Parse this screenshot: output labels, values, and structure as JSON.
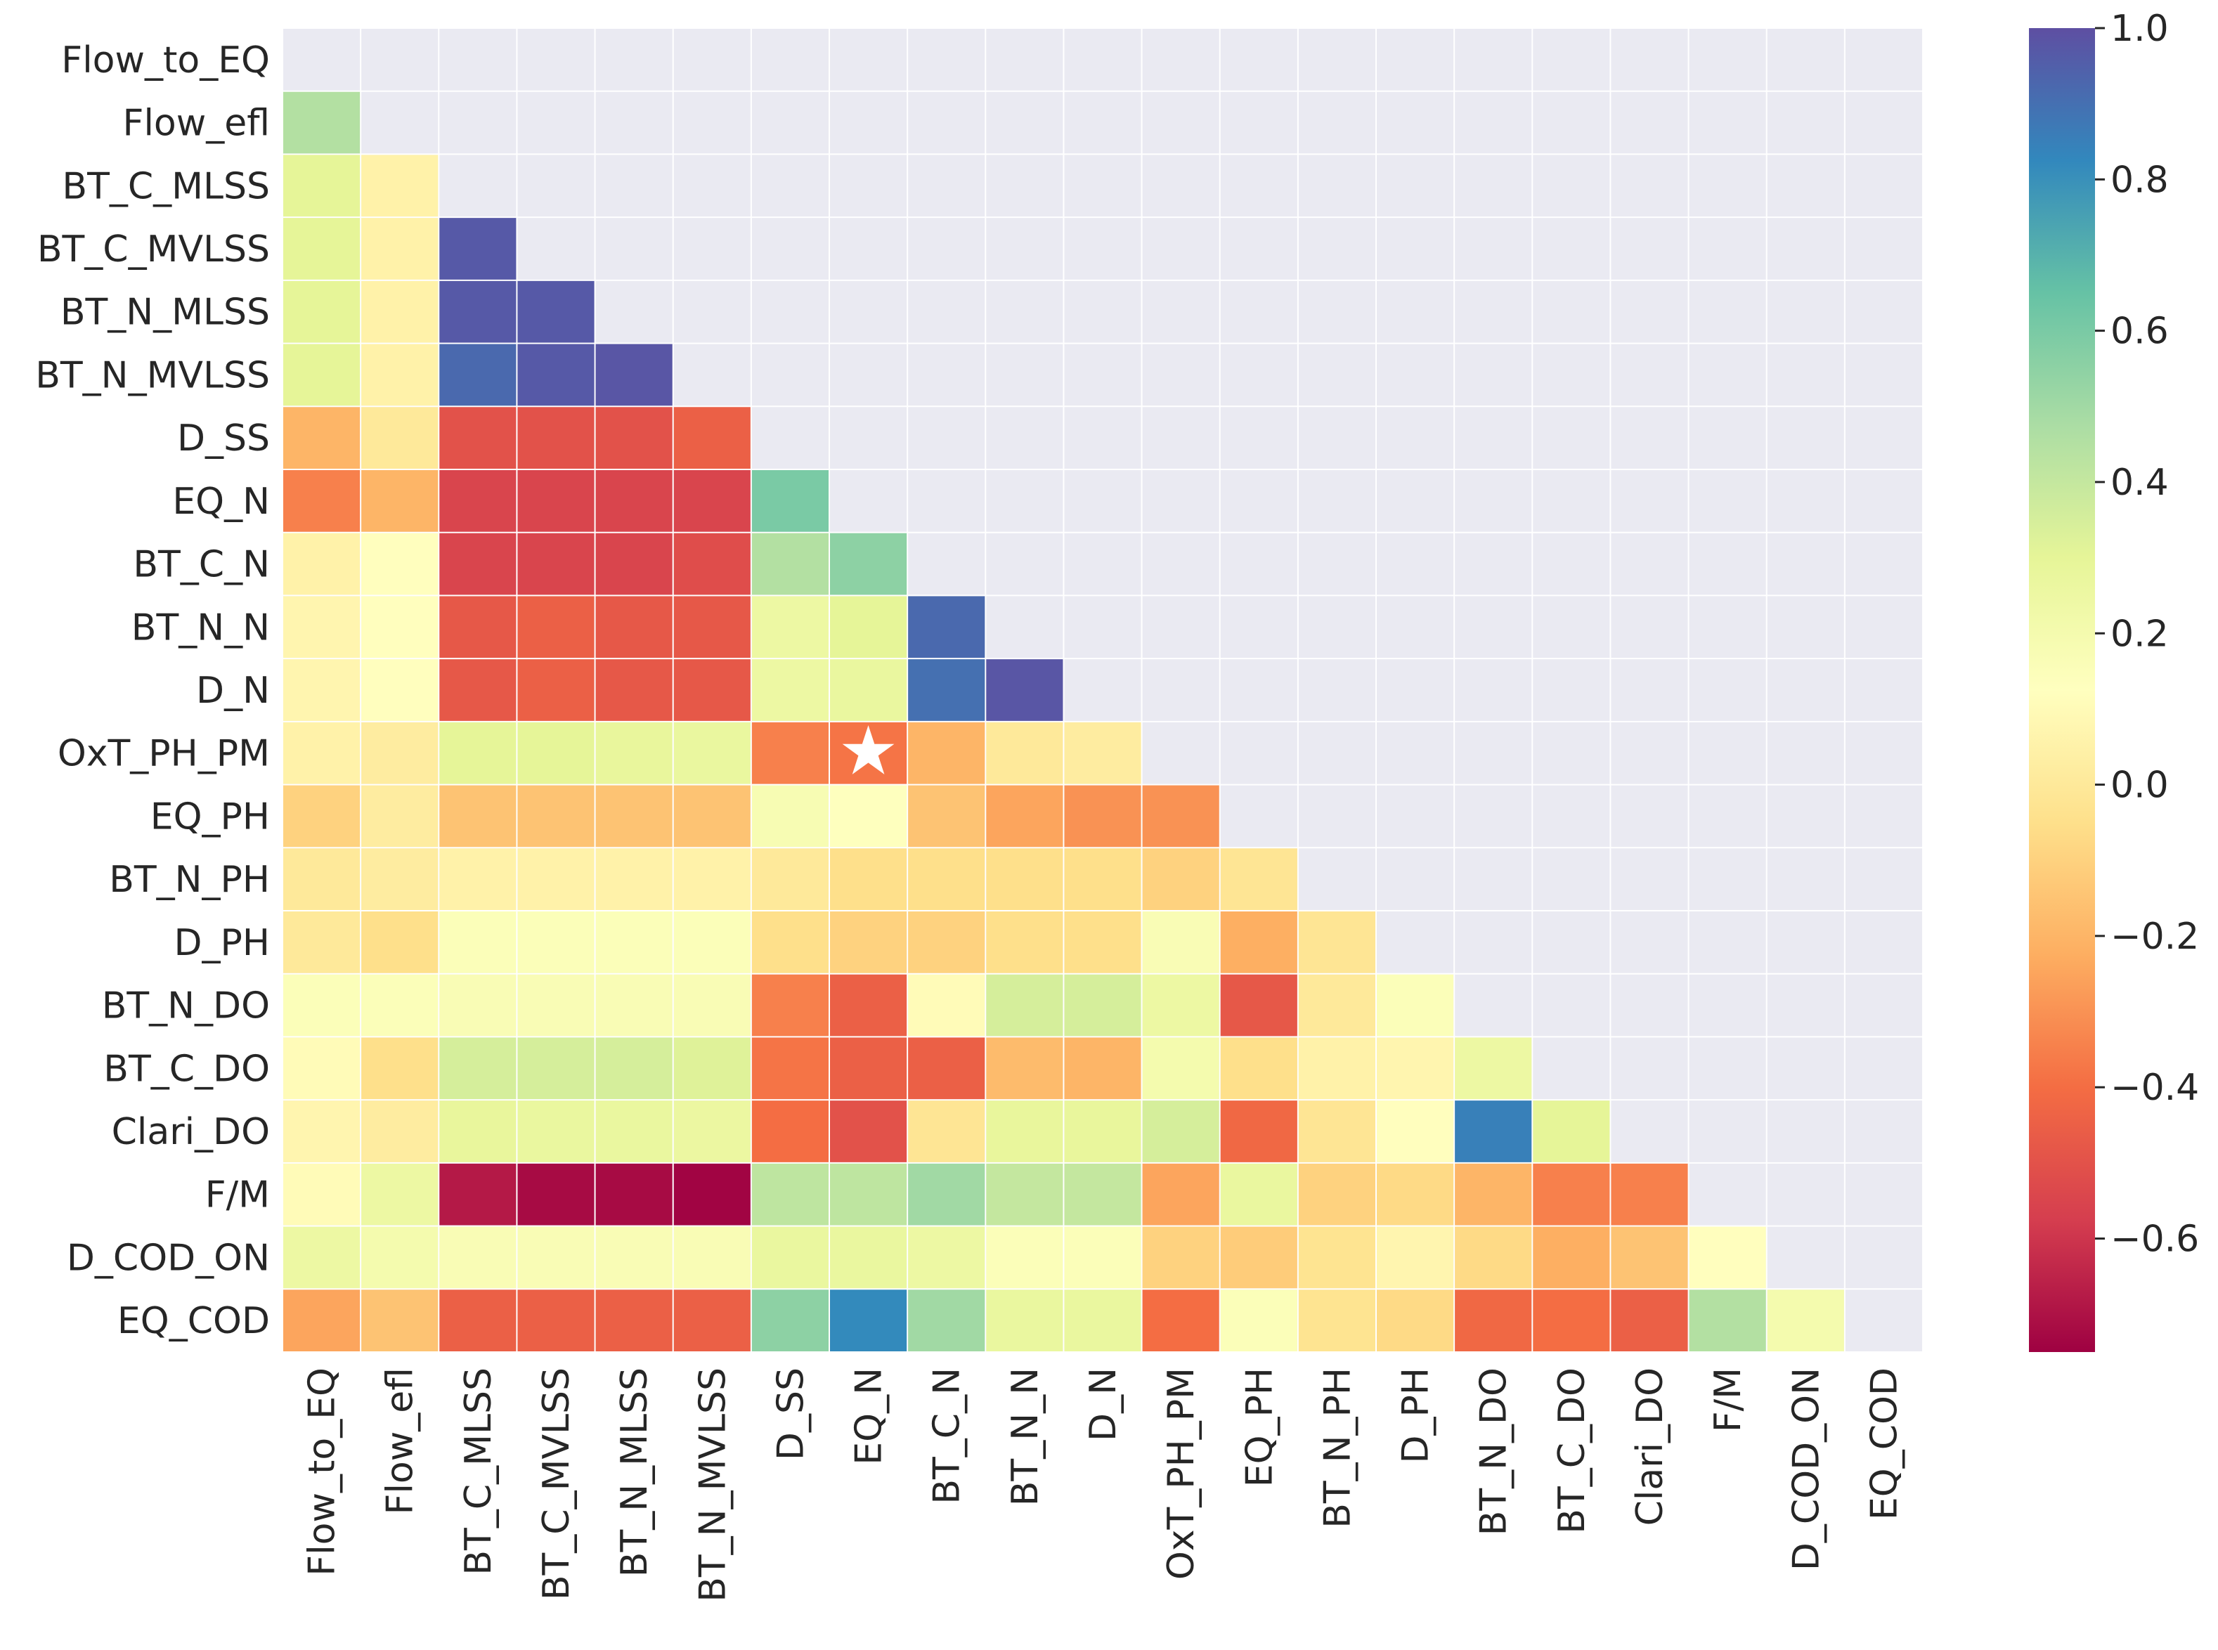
{
  "chart_data": {
    "type": "heatmap",
    "title": "",
    "xlabel": "",
    "ylabel": "",
    "mask": "upper-triangle-including-diagonal",
    "colormap": "Spectral",
    "vmin": -0.75,
    "vmax": 1.0,
    "colorbar_ticks": [
      "1.0",
      "0.8",
      "0.6",
      "0.4",
      "0.2",
      "0.0",
      "−0.2",
      "−0.4",
      "−0.6"
    ],
    "colorbar_tick_values": [
      1.0,
      0.8,
      0.6,
      0.4,
      0.2,
      0.0,
      -0.2,
      -0.4,
      -0.6
    ],
    "variables": [
      "Flow_to_EQ",
      "Flow_efl",
      "BT_C_MLSS",
      "BT_C_MVLSS",
      "BT_N_MLSS",
      "BT_N_MVLSS",
      "D_SS",
      "EQ_N",
      "BT_C_N",
      "BT_N_N",
      "D_N",
      "OxT_PH_PM",
      "EQ_PH",
      "BT_N_PH",
      "D_PH",
      "BT_N_DO",
      "BT_C_DO",
      "Clari_DO",
      "F/M",
      "D_COD_ON",
      "EQ_COD"
    ],
    "values": [
      [],
      [
        0.45
      ],
      [
        0.3,
        0.05
      ],
      [
        0.3,
        0.05,
        0.97
      ],
      [
        0.3,
        0.05,
        0.97,
        0.97
      ],
      [
        0.3,
        0.05,
        0.92,
        0.97,
        0.98
      ],
      [
        -0.2,
        0.0,
        -0.5,
        -0.5,
        -0.5,
        -0.45
      ],
      [
        -0.35,
        -0.2,
        -0.55,
        -0.55,
        -0.55,
        -0.55,
        0.6
      ],
      [
        0.05,
        0.12,
        -0.55,
        -0.55,
        -0.55,
        -0.52,
        0.45,
        0.55
      ],
      [
        0.07,
        0.12,
        -0.48,
        -0.45,
        -0.48,
        -0.48,
        0.25,
        0.3,
        0.92
      ],
      [
        0.07,
        0.12,
        -0.48,
        -0.45,
        -0.48,
        -0.48,
        0.25,
        0.27,
        0.9,
        0.98
      ],
      [
        0.05,
        0.02,
        0.3,
        0.3,
        0.28,
        0.27,
        -0.35,
        -0.38,
        -0.2,
        0.0,
        0.02
      ],
      [
        -0.1,
        0.02,
        -0.15,
        -0.15,
        -0.15,
        -0.15,
        0.18,
        0.13,
        -0.15,
        -0.25,
        -0.3,
        -0.3
      ],
      [
        0.0,
        0.02,
        0.05,
        0.05,
        0.05,
        0.05,
        0.0,
        -0.05,
        -0.05,
        -0.05,
        -0.05,
        -0.1,
        -0.02
      ],
      [
        0.0,
        -0.05,
        0.15,
        0.15,
        0.15,
        0.15,
        -0.05,
        -0.1,
        -0.1,
        -0.05,
        -0.05,
        0.17,
        -0.22,
        -0.02
      ],
      [
        0.15,
        0.15,
        0.17,
        0.17,
        0.17,
        0.17,
        -0.35,
        -0.45,
        0.1,
        0.35,
        0.35,
        0.25,
        -0.48,
        0.0,
        0.15
      ],
      [
        0.1,
        -0.05,
        0.35,
        0.35,
        0.35,
        0.32,
        -0.38,
        -0.45,
        -0.45,
        -0.18,
        -0.2,
        0.2,
        -0.05,
        0.05,
        0.07,
        0.25
      ],
      [
        0.07,
        0.02,
        0.28,
        0.27,
        0.27,
        0.26,
        -0.4,
        -0.5,
        -0.02,
        0.28,
        0.28,
        0.35,
        -0.42,
        -0.02,
        0.12,
        0.85,
        0.3
      ],
      [
        0.1,
        0.25,
        -0.68,
        -0.72,
        -0.72,
        -0.74,
        0.42,
        0.42,
        0.5,
        0.4,
        0.4,
        -0.25,
        0.27,
        -0.1,
        -0.07,
        -0.2,
        -0.35,
        -0.35
      ],
      [
        0.25,
        0.2,
        0.17,
        0.17,
        0.17,
        0.17,
        0.27,
        0.27,
        0.25,
        0.15,
        0.15,
        -0.1,
        -0.12,
        -0.03,
        0.07,
        -0.07,
        -0.22,
        -0.15,
        0.12
      ],
      [
        -0.25,
        -0.15,
        -0.45,
        -0.45,
        -0.45,
        -0.45,
        0.55,
        0.82,
        0.5,
        0.27,
        0.27,
        -0.4,
        0.15,
        -0.03,
        -0.07,
        -0.42,
        -0.4,
        -0.45,
        0.45,
        0.2
      ]
    ],
    "annotation": {
      "symbol": "★",
      "row": "OxT_PH_PM",
      "column": "EQ_N",
      "color": "#ffffff"
    }
  }
}
